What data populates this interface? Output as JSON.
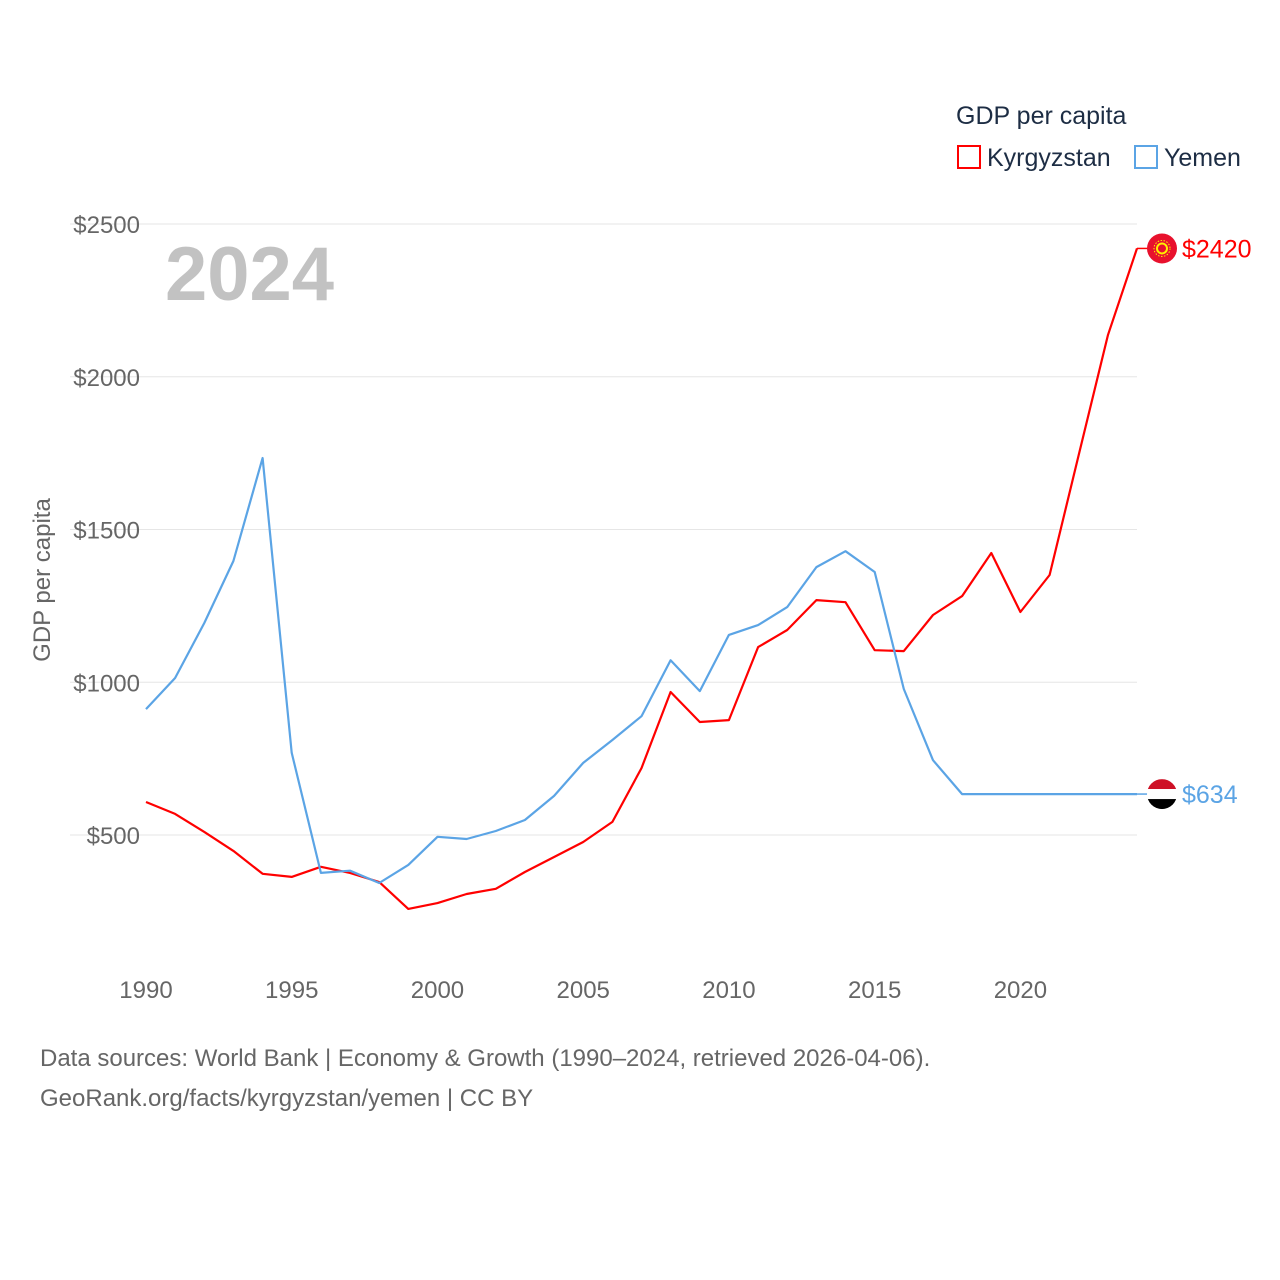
{
  "chart_data": {
    "type": "line",
    "title": "GDP per capita",
    "xlabel": "",
    "ylabel": "GDP per capita",
    "year_watermark": "2024",
    "xlim": [
      1990,
      2024
    ],
    "ylim": [
      0,
      2500
    ],
    "x_ticks": [
      1990,
      1995,
      2000,
      2005,
      2010,
      2015,
      2020
    ],
    "x_tick_labels": [
      "1990",
      "1995",
      "2000",
      "2005",
      "2010",
      "2015",
      "2020"
    ],
    "y_ticks": [
      500,
      1000,
      1500,
      2000,
      2500
    ],
    "y_tick_labels": [
      "$500",
      "$1000",
      "$1500",
      "$2000",
      "$2500"
    ],
    "grid": true,
    "legend_placement": "top-right",
    "x": [
      1990,
      1991,
      1992,
      1993,
      1994,
      1995,
      1996,
      1997,
      1998,
      1999,
      2000,
      2001,
      2002,
      2003,
      2004,
      2005,
      2006,
      2007,
      2008,
      2009,
      2010,
      2011,
      2012,
      2013,
      2014,
      2015,
      2016,
      2017,
      2018,
      2019,
      2020,
      2021,
      2022,
      2023,
      2024
    ],
    "series": [
      {
        "name": "Kyrgyzstan",
        "color": "#ff0000",
        "end_label": "$2420",
        "values": [
          608,
          569,
          510,
          448,
          373,
          363,
          396,
          376,
          346,
          258,
          277,
          307,
          324,
          379,
          428,
          477,
          543,
          719,
          968,
          870,
          876,
          1115,
          1171,
          1269,
          1262,
          1105,
          1102,
          1220,
          1282,
          1423,
          1230,
          1351,
          1744,
          2136,
          2420
        ]
      },
      {
        "name": "Yemen",
        "color": "#5ba4e5",
        "end_label": "$634",
        "values": [
          912,
          1014,
          1194,
          1397,
          1734,
          769,
          376,
          383,
          343,
          402,
          494,
          487,
          513,
          549,
          628,
          736,
          811,
          889,
          1072,
          971,
          1155,
          1187,
          1246,
          1377,
          1429,
          1361,
          978,
          745,
          634,
          634,
          634,
          634,
          634,
          634,
          634
        ]
      }
    ]
  },
  "footer": {
    "line1": "Data sources: World Bank | Economy & Growth (1990–2024, retrieved 2026-04-06).",
    "line2": "GeoRank.org/facts/kyrgyzstan/yemen | CC BY"
  }
}
